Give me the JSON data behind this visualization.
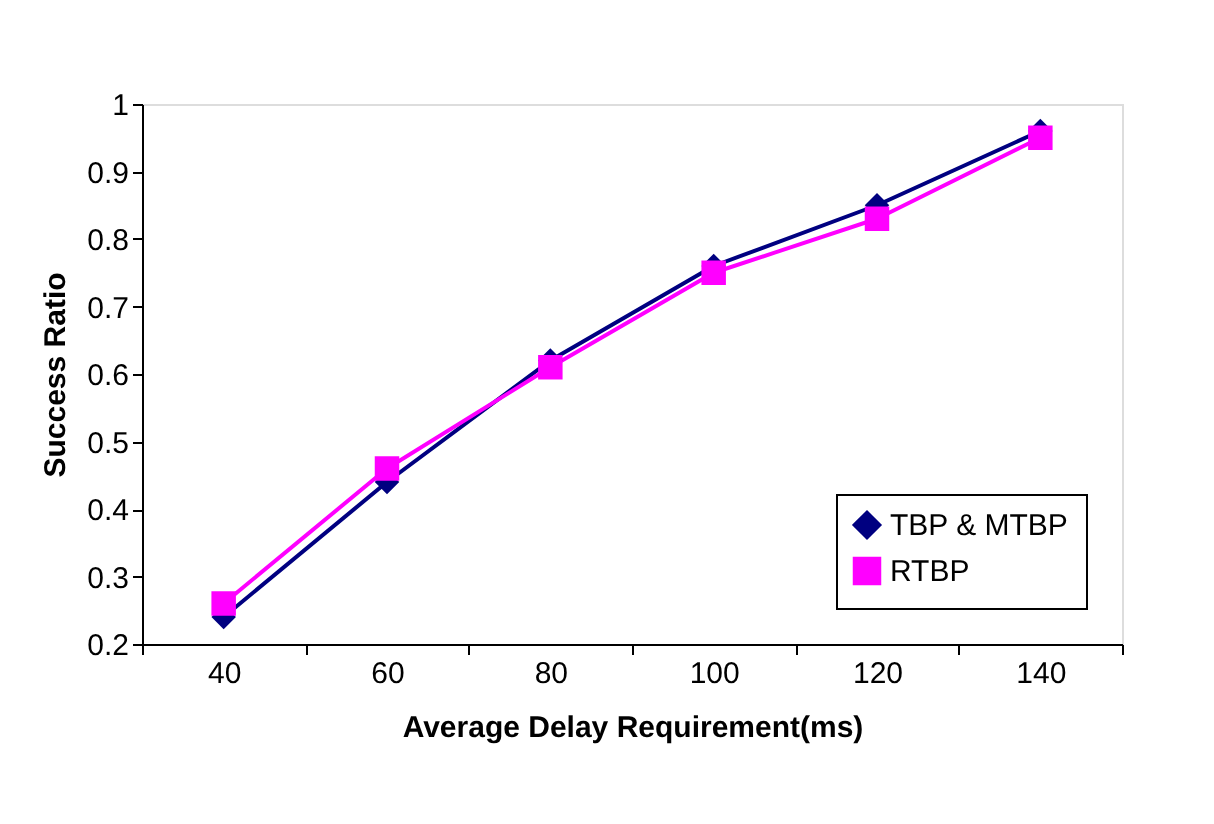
{
  "chart_data": {
    "type": "line",
    "xlabel": "Average Delay Requirement(ms)",
    "ylabel": "Success Ratio",
    "categories": [
      "40",
      "60",
      "80",
      "100",
      "120",
      "140"
    ],
    "series": [
      {
        "name": "TBP & MTBP",
        "color": "#000080",
        "marker": "diamond",
        "values": [
          0.24,
          0.44,
          0.62,
          0.76,
          0.85,
          0.96
        ]
      },
      {
        "name": "RTBP",
        "color": "#ff00ff",
        "marker": "square",
        "values": [
          0.26,
          0.46,
          0.61,
          0.75,
          0.83,
          0.95
        ]
      }
    ],
    "ylim": [
      0.2,
      1
    ],
    "yticks": [
      0.2,
      0.3,
      0.4,
      0.5,
      0.6,
      0.7,
      0.8,
      0.9,
      1
    ],
    "grid": false,
    "legend": "bottom right",
    "line_style": "solid"
  }
}
